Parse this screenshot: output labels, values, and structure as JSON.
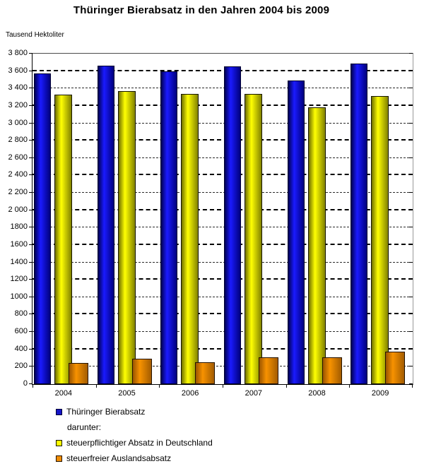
{
  "page": {
    "title": "Thüringer Bierabsatz in den Jahren 2004 bis 2009"
  },
  "chart_data": {
    "type": "bar",
    "title": "Thüringer Bierabsatz in den Jahren 2004 bis 2009",
    "ylabel": "Tausend Hektoliter",
    "xlabel": "",
    "categories": [
      "2004",
      "2005",
      "2006",
      "2007",
      "2008",
      "2009"
    ],
    "series": [
      {
        "name": "Thüringer Bierabsatz",
        "values": [
          3570,
          3660,
          3600,
          3650,
          3490,
          3690
        ],
        "color": "#1515c8",
        "gradient": [
          "#000052",
          "#1a1aff",
          "#00007d"
        ],
        "border": "#000030"
      },
      {
        "name": "steuerpflichtiger Absatz in Deutschland",
        "values": [
          3330,
          3370,
          3340,
          3340,
          3180,
          3310
        ],
        "color": "#ffff00",
        "gradient": [
          "#6f6f00",
          "#ffff02",
          "#828200"
        ],
        "border": "#161600"
      },
      {
        "name": "steuerfreier Auslandsabsatz",
        "values": [
          240,
          290,
          255,
          310,
          310,
          375
        ],
        "color": "#ef8d05",
        "gradient": [
          "#9a5400",
          "#f79200",
          "#a35c00"
        ],
        "border": "#241300"
      }
    ],
    "ylim": [
      0,
      3800
    ],
    "ytick_step": 200,
    "ytick_labels": [
      "0",
      "200",
      "400",
      "600",
      "800",
      "1000",
      "1200",
      "1400",
      "1600",
      "1800",
      "2 000",
      "2 200",
      "2 400",
      "2 600",
      "2 800",
      "3 000",
      "3 200",
      "3 400",
      "3 600",
      "3 800"
    ],
    "grid": "horizontal-dashed-alternating-bold",
    "legend": {
      "position": "bottom-left",
      "note": "darunter:"
    }
  }
}
